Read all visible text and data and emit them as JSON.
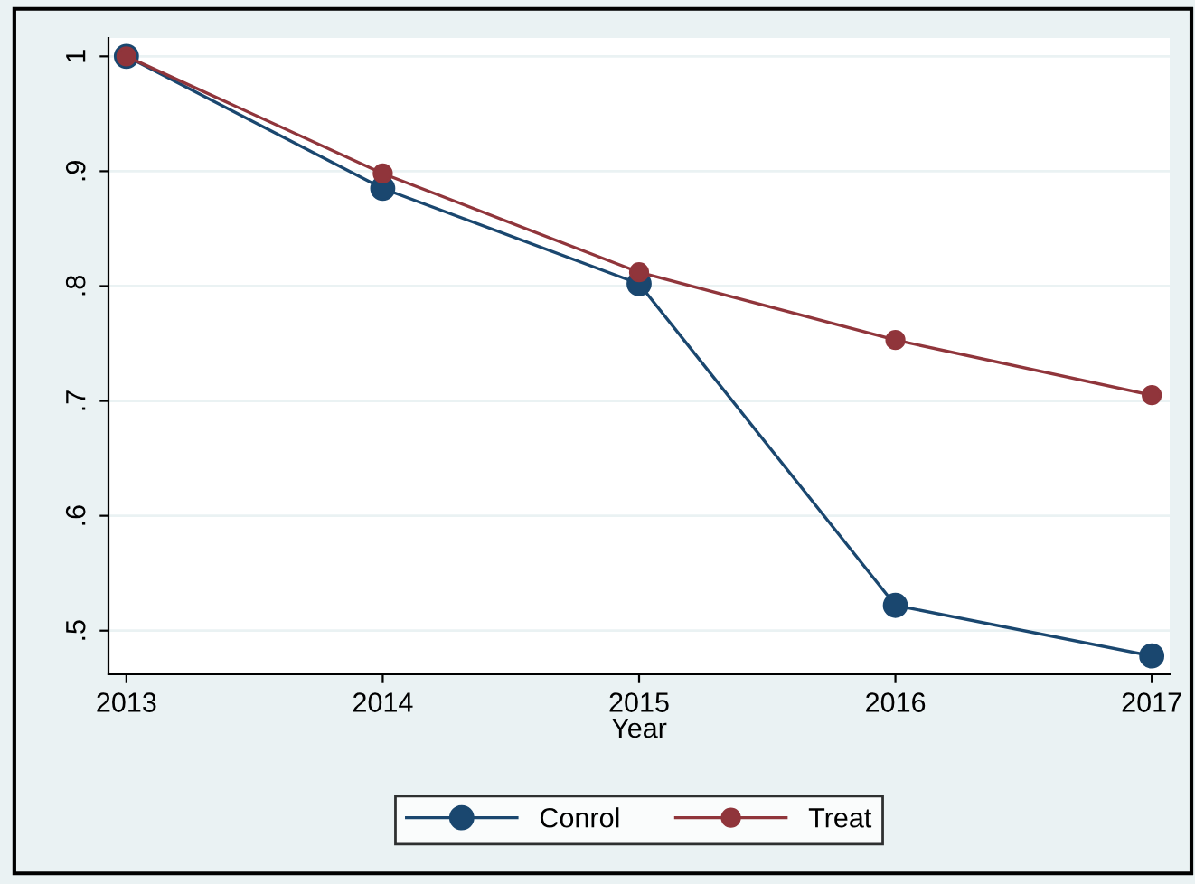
{
  "chart_data": {
    "type": "line",
    "xlabel": "Year",
    "x": [
      2013,
      2014,
      2015,
      2016,
      2017
    ],
    "series": [
      {
        "name": "Conrol",
        "color": "#1a476f",
        "values": [
          1.0,
          0.885,
          0.802,
          0.522,
          0.478
        ]
      },
      {
        "name": "Treat",
        "color": "#90353b",
        "values": [
          1.0,
          0.898,
          0.812,
          0.753,
          0.705
        ]
      }
    ],
    "xlim": [
      2012.93,
      2017.07
    ],
    "xticks": [
      2013,
      2014,
      2015,
      2016,
      2017
    ],
    "ylim": [
      0.462,
      1.016
    ],
    "yticks": [
      {
        "value": 0.5,
        "label": ".5"
      },
      {
        "value": 0.6,
        "label": ".6"
      },
      {
        "value": 0.7,
        "label": ".7"
      },
      {
        "value": 0.8,
        "label": ".8"
      },
      {
        "value": 0.9,
        "label": ".9"
      },
      {
        "value": 1,
        "label": "1"
      }
    ],
    "grid": "y",
    "legend": "bottom",
    "marker": "circle",
    "line_style": "solid"
  }
}
